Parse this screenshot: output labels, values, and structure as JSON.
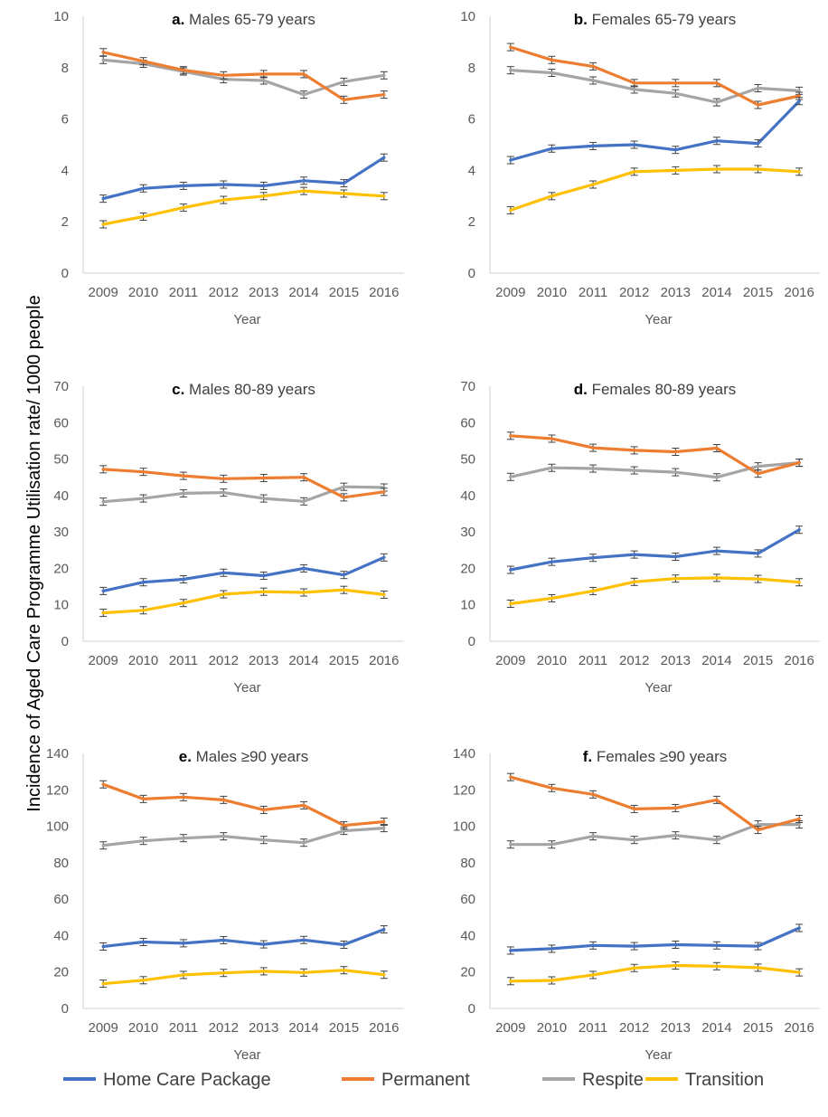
{
  "y_axis_label": "Incidence of Aged Care Programme Utilisation rate/ 1000 people",
  "colors": {
    "Home Care Package": "#4472c4",
    "Permanent": "#ed7d31",
    "Respite": "#a5a5a5",
    "Transition": "#ffc000"
  },
  "legend": [
    "Home Care Package",
    "Permanent",
    "Respite",
    "Transition"
  ],
  "chart_data": [
    {
      "type": "line",
      "panel_letter": "a.",
      "title": "Males 65-79 years",
      "xlabel": "Year",
      "x": [
        "2009",
        "2010",
        "2011",
        "2012",
        "2013",
        "2014",
        "2015",
        "2016"
      ],
      "ylim": [
        0,
        10
      ],
      "yticks": [
        0,
        2,
        4,
        6,
        8,
        10
      ],
      "series": [
        {
          "name": "Home Care Package",
          "values": [
            2.9,
            3.3,
            3.4,
            3.45,
            3.4,
            3.6,
            3.5,
            4.5
          ]
        },
        {
          "name": "Permanent",
          "values": [
            8.6,
            8.25,
            7.9,
            7.7,
            7.75,
            7.75,
            6.75,
            6.95
          ]
        },
        {
          "name": "Respite",
          "values": [
            8.3,
            8.15,
            7.85,
            7.55,
            7.5,
            6.95,
            7.45,
            7.7
          ]
        },
        {
          "name": "Transition",
          "values": [
            1.9,
            2.2,
            2.55,
            2.85,
            3.0,
            3.2,
            3.1,
            3.0
          ]
        }
      ]
    },
    {
      "type": "line",
      "panel_letter": "b.",
      "title": "Females 65-79 years",
      "xlabel": "Year",
      "x": [
        "2009",
        "2010",
        "2011",
        "2012",
        "2013",
        "2014",
        "2015",
        "2016"
      ],
      "ylim": [
        0,
        10
      ],
      "yticks": [
        0,
        2,
        4,
        6,
        8,
        10
      ],
      "series": [
        {
          "name": "Home Care Package",
          "values": [
            4.4,
            4.85,
            4.95,
            5.0,
            4.8,
            5.15,
            5.05,
            6.7
          ]
        },
        {
          "name": "Permanent",
          "values": [
            8.8,
            8.3,
            8.05,
            7.4,
            7.4,
            7.4,
            6.55,
            6.9
          ]
        },
        {
          "name": "Respite",
          "values": [
            7.9,
            7.8,
            7.5,
            7.15,
            7.0,
            6.65,
            7.2,
            7.1
          ]
        },
        {
          "name": "Transition",
          "values": [
            2.45,
            3.0,
            3.45,
            3.95,
            4.0,
            4.05,
            4.05,
            3.95
          ]
        }
      ]
    },
    {
      "type": "line",
      "panel_letter": "c.",
      "title": "Males 80-89 years",
      "xlabel": "Year",
      "x": [
        "2009",
        "2010",
        "2011",
        "2012",
        "2013",
        "2014",
        "2015",
        "2016"
      ],
      "ylim": [
        0,
        70
      ],
      "yticks": [
        0,
        10,
        20,
        30,
        40,
        50,
        60,
        70
      ],
      "series": [
        {
          "name": "Home Care Package",
          "values": [
            13.8,
            16.2,
            17.0,
            18.8,
            18.0,
            20.0,
            18.2,
            23.0
          ]
        },
        {
          "name": "Permanent",
          "values": [
            47.2,
            46.5,
            45.4,
            44.6,
            44.8,
            45.0,
            39.5,
            41.0
          ]
        },
        {
          "name": "Respite",
          "values": [
            38.3,
            39.2,
            40.6,
            40.8,
            39.2,
            38.4,
            42.4,
            42.2
          ]
        },
        {
          "name": "Transition",
          "values": [
            7.8,
            8.5,
            10.5,
            12.9,
            13.6,
            13.4,
            14.1,
            12.8
          ]
        }
      ]
    },
    {
      "type": "line",
      "panel_letter": "d.",
      "title": "Females 80-89 years",
      "xlabel": "Year",
      "x": [
        "2009",
        "2010",
        "2011",
        "2012",
        "2013",
        "2014",
        "2015",
        "2016"
      ],
      "ylim": [
        0,
        70
      ],
      "yticks": [
        0,
        10,
        20,
        30,
        40,
        50,
        60,
        70
      ],
      "series": [
        {
          "name": "Home Care Package",
          "values": [
            19.6,
            21.8,
            22.9,
            23.8,
            23.2,
            24.8,
            24.1,
            30.6
          ]
        },
        {
          "name": "Permanent",
          "values": [
            56.4,
            55.6,
            53.1,
            52.4,
            52.0,
            53.0,
            46.0,
            49.0
          ]
        },
        {
          "name": "Respite",
          "values": [
            45.1,
            47.6,
            47.4,
            46.9,
            46.4,
            45.0,
            48.0,
            49.0
          ]
        },
        {
          "name": "Transition",
          "values": [
            10.3,
            11.8,
            13.8,
            16.3,
            17.2,
            17.4,
            17.1,
            16.2
          ]
        }
      ]
    },
    {
      "type": "line",
      "panel_letter": "e.",
      "title": "Males ≥90 years",
      "xlabel": "Year",
      "x": [
        "2009",
        "2010",
        "2011",
        "2012",
        "2013",
        "2014",
        "2015",
        "2016"
      ],
      "ylim": [
        0,
        140
      ],
      "yticks": [
        0,
        20,
        40,
        60,
        80,
        100,
        120,
        140
      ],
      "series": [
        {
          "name": "Home Care Package",
          "values": [
            34.0,
            36.5,
            35.8,
            37.5,
            35.2,
            37.6,
            35.0,
            43.4
          ]
        },
        {
          "name": "Permanent",
          "values": [
            123.0,
            115.0,
            116.0,
            114.5,
            109.0,
            111.5,
            100.5,
            102.5
          ]
        },
        {
          "name": "Respite",
          "values": [
            89.5,
            92.0,
            93.5,
            94.5,
            92.5,
            91.0,
            97.5,
            99.0
          ]
        },
        {
          "name": "Transition",
          "values": [
            13.6,
            15.5,
            18.4,
            19.5,
            20.4,
            19.7,
            21.0,
            18.5
          ]
        }
      ]
    },
    {
      "type": "line",
      "panel_letter": "f.",
      "title": "Females ≥90 years",
      "xlabel": "Year",
      "x": [
        "2009",
        "2010",
        "2011",
        "2012",
        "2013",
        "2014",
        "2015",
        "2016"
      ],
      "ylim": [
        0,
        140
      ],
      "yticks": [
        0,
        20,
        40,
        60,
        80,
        100,
        120,
        140
      ],
      "series": [
        {
          "name": "Home Care Package",
          "values": [
            31.8,
            32.8,
            34.6,
            34.2,
            35.0,
            34.6,
            34.2,
            44.2
          ]
        },
        {
          "name": "Permanent",
          "values": [
            127.0,
            121.0,
            117.5,
            109.5,
            110.0,
            114.5,
            98.0,
            104.0
          ]
        },
        {
          "name": "Respite",
          "values": [
            90.0,
            90.0,
            94.5,
            92.5,
            95.0,
            92.5,
            101.0,
            101.0
          ]
        },
        {
          "name": "Transition",
          "values": [
            15.0,
            15.4,
            18.4,
            22.2,
            23.6,
            23.2,
            22.4,
            19.8
          ]
        }
      ]
    }
  ]
}
